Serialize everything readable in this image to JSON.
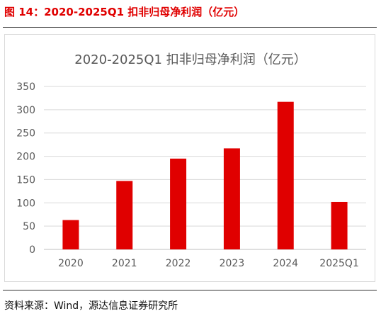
{
  "figure_title": "图 14：2020-2025Q1  扣非归母净利润（亿元）",
  "source": "资料来源：Wind，源达信息证券研究所",
  "colors": {
    "accent": "#e00000",
    "bar": "#e00000",
    "grid": "#d9d9d9",
    "text": "#595959"
  },
  "chart_data": {
    "type": "bar",
    "title": "2020-2025Q1 扣非归母净利润（亿元）",
    "xlabel": "",
    "ylabel": "",
    "categories": [
      "2020",
      "2021",
      "2022",
      "2023",
      "2024",
      "2025Q1"
    ],
    "values": [
      63,
      147,
      195,
      217,
      317,
      102
    ],
    "ylim": [
      0,
      350
    ],
    "yticks": [
      0,
      50,
      100,
      150,
      200,
      250,
      300,
      350
    ],
    "grid": true,
    "legend": "none"
  }
}
